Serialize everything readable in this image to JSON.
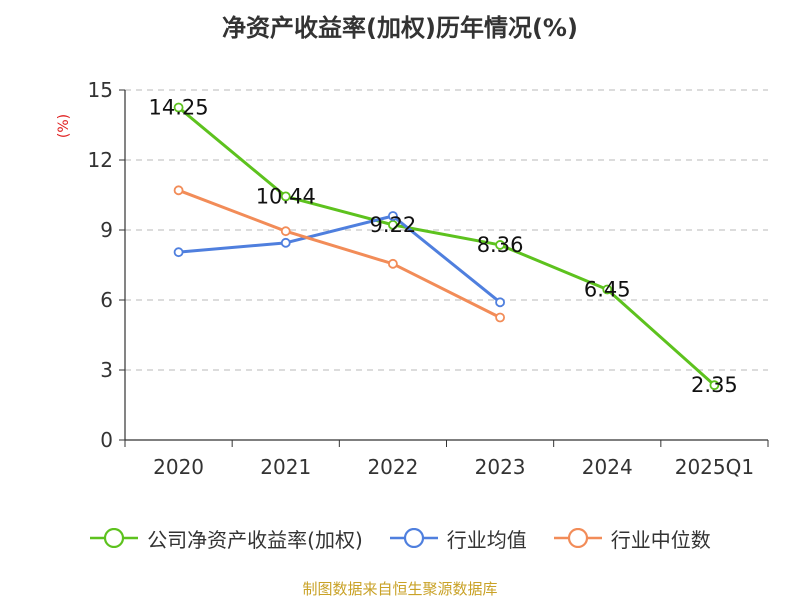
{
  "chart_data": {
    "type": "line",
    "title": "净资产收益率(加权)历年情况(%)",
    "ylabel": "(%)",
    "xlabel": "",
    "categories": [
      "2020",
      "2021",
      "2022",
      "2023",
      "2024",
      "2025Q1"
    ],
    "ylim": [
      0,
      15
    ],
    "yticks": [
      0,
      3,
      6,
      9,
      12,
      15
    ],
    "grid": true,
    "legend_position": "bottom",
    "series": [
      {
        "name": "公司净资产收益率(加权)",
        "color": "#5dc21e",
        "values": [
          14.25,
          10.44,
          9.22,
          8.36,
          6.45,
          2.35
        ],
        "labels": [
          "14.25",
          "10.44",
          "9.22",
          "8.36",
          "6.45",
          "2.35"
        ]
      },
      {
        "name": "行业均值",
        "color": "#4f7fde",
        "values": [
          8.05,
          8.45,
          9.6,
          5.9,
          null,
          null
        ]
      },
      {
        "name": "行业中位数",
        "color": "#f28c58",
        "values": [
          10.7,
          8.95,
          7.55,
          5.25,
          null,
          null
        ]
      }
    ]
  },
  "source_note": "制图数据来自恒生聚源数据库"
}
